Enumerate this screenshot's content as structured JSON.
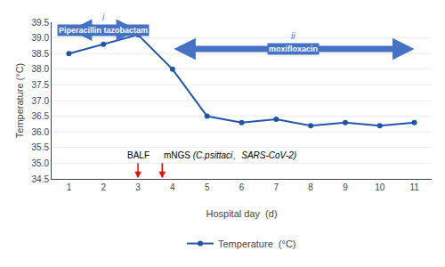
{
  "chart_data": {
    "type": "line",
    "x": [
      1,
      2,
      3,
      4,
      5,
      6,
      7,
      8,
      9,
      10,
      11
    ],
    "series": [
      {
        "name": "Temperature  (°C)",
        "color": "#2255aa",
        "marker": "circle",
        "values": [
          38.5,
          38.8,
          39.1,
          38.0,
          36.5,
          36.3,
          36.4,
          36.2,
          36.3,
          36.2,
          36.3
        ]
      }
    ],
    "xlabel": "Hospital day  (d)",
    "ylabel": "Temperature (°C)",
    "xlim": [
      0.5,
      11.5
    ],
    "ylim": [
      34.5,
      39.5
    ],
    "xticks": [
      1,
      2,
      3,
      4,
      5,
      6,
      7,
      8,
      9,
      10,
      11
    ],
    "yticks": [
      34.5,
      {
        "value": 35.0,
        "label": "35.0"
      },
      35.5,
      {
        "value": 36.0,
        "label": "36.0"
      },
      36.5,
      {
        "value": 37.0,
        "label": "37.0"
      },
      37.5,
      {
        "value": 38.0,
        "label": "38.0"
      },
      38.5,
      {
        "value": 39.0,
        "label": "39.0"
      },
      39.5
    ],
    "grid": "y",
    "legend": "bottom",
    "annotations": [
      {
        "type": "span_arrow",
        "text": "Piperacillin tazobactam",
        "note": "i",
        "x_start": 1.0,
        "x_end": 3.0,
        "y": 39.25,
        "color": "#4472C4"
      },
      {
        "type": "span_arrow",
        "text": "moxifloxacin",
        "note": "ii",
        "x_start": 4.0,
        "x_end": 11.0,
        "y": 38.65,
        "color": "#4472C4"
      },
      {
        "type": "arrow",
        "text": "BALF",
        "x": 3.0,
        "y_top": 35.05,
        "y_bot": 34.52,
        "color": "red"
      },
      {
        "type": "arrow",
        "text": "mNGS",
        "italic_text": " (C.psittaci、SARS-CoV-2)",
        "x": 3.7,
        "y_top": 35.05,
        "y_bot": 34.52,
        "color": "red"
      }
    ]
  }
}
